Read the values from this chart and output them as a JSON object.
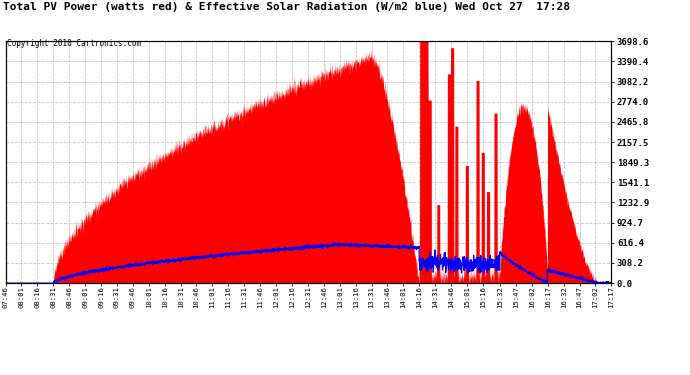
{
  "title": "Total PV Power (watts red) & Effective Solar Radiation (W/m2 blue) Wed Oct 27  17:28",
  "copyright": "Copyright 2010 Cartronics.com",
  "bg_color": "#ffffff",
  "plot_bg_color": "#ffffff",
  "grid_color": "#c8c8c8",
  "fill_color": "#ff0000",
  "line_color": "#0000ff",
  "ytick_labels": [
    "0.0",
    "308.2",
    "616.4",
    "924.7",
    "1232.9",
    "1541.1",
    "1849.3",
    "2157.5",
    "2465.8",
    "2774.0",
    "3082.2",
    "3390.4",
    "3698.6"
  ],
  "ytick_values": [
    0.0,
    308.2,
    616.4,
    924.7,
    1232.9,
    1541.1,
    1849.3,
    2157.5,
    2465.8,
    2774.0,
    3082.2,
    3390.4,
    3698.6
  ],
  "ymax": 3698.6,
  "ymin": 0.0,
  "xtick_labels": [
    "07:46",
    "08:01",
    "08:16",
    "08:31",
    "08:46",
    "09:01",
    "09:16",
    "09:31",
    "09:46",
    "10:01",
    "10:16",
    "10:31",
    "10:46",
    "11:01",
    "11:16",
    "11:31",
    "11:46",
    "12:01",
    "12:16",
    "12:31",
    "12:46",
    "13:01",
    "13:16",
    "13:31",
    "13:46",
    "14:01",
    "14:16",
    "14:31",
    "14:46",
    "15:01",
    "15:16",
    "15:32",
    "15:47",
    "16:02",
    "16:17",
    "16:32",
    "16:47",
    "17:02",
    "17:17"
  ]
}
